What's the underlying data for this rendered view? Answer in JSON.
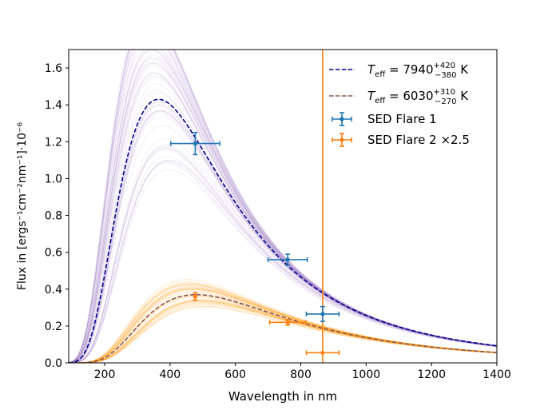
{
  "chart_data": {
    "type": "line",
    "xlabel": "Wavelength in nm",
    "ylabel": "Flux in [ergs⁻¹cm⁻²nm⁻¹]·10⁻⁶",
    "xlim": [
      90,
      1400
    ],
    "ylim": [
      0,
      1.7
    ],
    "xticks": [
      200,
      400,
      600,
      800,
      1000,
      1200,
      1400
    ],
    "yticks": [
      0.0,
      0.2,
      0.4,
      0.6,
      0.8,
      1.0,
      1.2,
      1.4,
      1.6
    ],
    "grid": false,
    "legend_position": "top-right",
    "colors": {
      "fit1": "#00008b",
      "fit2": "#8c564b",
      "samples1": "#9467bd",
      "samples2": "#ff9f0e",
      "sed1": "#1f77b4",
      "sed2": "#ff7f0e",
      "vline": "#ff7f0e"
    },
    "fits": [
      {
        "name": "T_eff = 7940 (+420 / −380) K",
        "legend": {
          "prefix": "T",
          "sub": "eff",
          "eq": " = 7940",
          "sup": "+420",
          "lo": "−380",
          "unit": " K"
        },
        "temperature": 7940,
        "peak": 1.43,
        "samples_T_min": 7300,
        "samples_T_max": 8800
      },
      {
        "name": "T_eff = 6030 (+310 / −270) K",
        "legend": {
          "prefix": "T",
          "sub": "eff",
          "eq": " = 6030",
          "sup": "+310",
          "lo": "−270",
          "unit": " K"
        },
        "temperature": 6030,
        "peak": 0.37,
        "samples_T_min": 5700,
        "samples_T_max": 6400
      }
    ],
    "series": [
      {
        "name": "SED Flare 1",
        "points": [
          {
            "x": 477,
            "y": 1.19,
            "xerr": 75,
            "yerr": 0.06
          },
          {
            "x": 760,
            "y": 0.56,
            "xerr": 60,
            "yerr": 0.03
          },
          {
            "x": 867,
            "y": 0.265,
            "xerr": 50,
            "yerr": 0.04
          }
        ]
      },
      {
        "name": "SED Flare 2 ×2.5",
        "points": [
          {
            "x": 477,
            "y": 0.36,
            "xerr": 0,
            "yerr": 0.02
          },
          {
            "x": 760,
            "y": 0.22,
            "xerr": 55,
            "yerr": 0.015
          },
          {
            "x": 867,
            "y": 0.055,
            "xerr": 50,
            "yerr": 0.0
          }
        ]
      }
    ],
    "vertical_line": {
      "x": 867
    }
  }
}
